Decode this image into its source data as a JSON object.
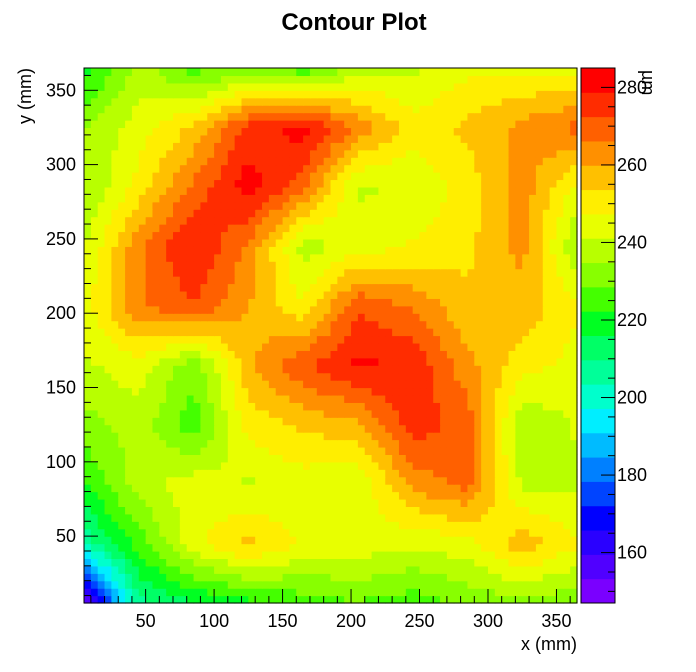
{
  "chart_data": {
    "type": "heatmap",
    "title": "Contour Plot",
    "xlabel": "x (mm)",
    "ylabel": "y (mm)",
    "zlabel": "µm",
    "xlim": [
      5,
      365
    ],
    "ylim": [
      5,
      365
    ],
    "zlim": [
      147,
      285
    ],
    "x_ticks": [
      50,
      100,
      150,
      200,
      250,
      300,
      350
    ],
    "y_ticks": [
      50,
      100,
      150,
      200,
      250,
      300,
      350
    ],
    "z_ticks": [
      160,
      180,
      200,
      220,
      240,
      260,
      280
    ],
    "palette": [
      "#7a00ff",
      "#5000ff",
      "#2a00ff",
      "#0000ff",
      "#0044ff",
      "#0080ff",
      "#00bbff",
      "#00eeff",
      "#00ffcc",
      "#00ff99",
      "#00ff66",
      "#00ff22",
      "#44ff00",
      "#88ff00",
      "#b8ff00",
      "#e8ff00",
      "#ffee00",
      "#ffc000",
      "#ff9000",
      "#ff6000",
      "#ff2c00",
      "#ff0000"
    ],
    "grid": false,
    "x": [
      5,
      45,
      85,
      125,
      165,
      205,
      245,
      285,
      325,
      365
    ],
    "y": [
      5,
      45,
      85,
      125,
      165,
      205,
      245,
      285,
      325,
      365
    ],
    "z": [
      [
        150,
        208,
        215,
        220,
        225,
        228,
        225,
        230,
        232,
        230
      ],
      [
        205,
        225,
        245,
        256,
        246,
        245,
        242,
        245,
        258,
        248
      ],
      [
        222,
        238,
        245,
        240,
        244,
        242,
        262,
        268,
        240,
        240
      ],
      [
        232,
        238,
        225,
        250,
        255,
        258,
        276,
        270,
        235,
        242
      ],
      [
        240,
        245,
        230,
        258,
        272,
        280,
        278,
        262,
        250,
        245
      ],
      [
        245,
        265,
        272,
        260,
        248,
        272,
        265,
        255,
        258,
        248
      ],
      [
        240,
        265,
        280,
        265,
        238,
        244,
        248,
        252,
        262,
        235
      ],
      [
        234,
        250,
        268,
        282,
        268,
        240,
        242,
        250,
        264,
        245
      ],
      [
        235,
        244,
        255,
        275,
        282,
        265,
        250,
        255,
        262,
        268
      ],
      [
        218,
        238,
        226,
        230,
        224,
        238,
        240,
        246,
        246,
        246
      ]
    ]
  }
}
